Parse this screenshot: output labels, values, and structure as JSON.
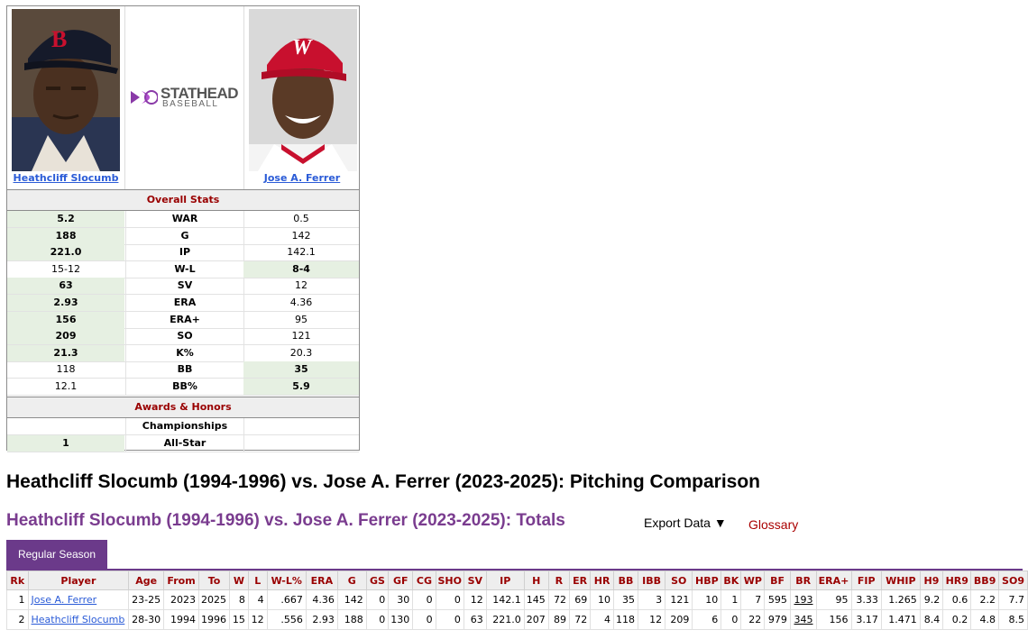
{
  "players": {
    "left": {
      "name": "Heathcliff Slocumb"
    },
    "right": {
      "name": "Jose A. Ferrer"
    }
  },
  "logo": {
    "line1": "STATHEAD",
    "line2": "BASEBALL"
  },
  "overall": {
    "header": "Overall Stats",
    "rows": [
      {
        "label": "WAR",
        "left": "5.2",
        "right": "0.5",
        "winner": "left"
      },
      {
        "label": "G",
        "left": "188",
        "right": "142",
        "winner": "left"
      },
      {
        "label": "IP",
        "left": "221.0",
        "right": "142.1",
        "winner": "left"
      },
      {
        "label": "W-L",
        "left": "15-12",
        "right": "8-4",
        "winner": "right"
      },
      {
        "label": "SV",
        "left": "63",
        "right": "12",
        "winner": "left"
      },
      {
        "label": "ERA",
        "left": "2.93",
        "right": "4.36",
        "winner": "left"
      },
      {
        "label": "ERA+",
        "left": "156",
        "right": "95",
        "winner": "left"
      },
      {
        "label": "SO",
        "left": "209",
        "right": "121",
        "winner": "left"
      },
      {
        "label": "K%",
        "left": "21.3",
        "right": "20.3",
        "winner": "left"
      },
      {
        "label": "BB",
        "left": "118",
        "right": "35",
        "winner": "right"
      },
      {
        "label": "BB%",
        "left": "12.1",
        "right": "5.9",
        "winner": "right"
      }
    ]
  },
  "awards": {
    "header": "Awards & Honors",
    "rows": [
      {
        "label": "Championships",
        "left": "",
        "right": "",
        "winner": "none"
      },
      {
        "label": "All-Star",
        "left": "1",
        "right": "",
        "winner": "left"
      }
    ]
  },
  "heading": "Heathcliff Slocumb (1994-1996) vs. Jose A. Ferrer (2023-2025): Pitching Comparison",
  "subheading": "Heathcliff Slocumb (1994-1996) vs. Jose A. Ferrer (2023-2025): Totals",
  "export_label": "Export Data ▼",
  "glossary_label": "Glossary",
  "tab_label": "Regular Season",
  "table": {
    "columns": [
      "Rk",
      "Player",
      "Age",
      "From",
      "To",
      "W",
      "L",
      "W-L%",
      "ERA",
      "G",
      "GS",
      "GF",
      "CG",
      "SHO",
      "SV",
      "IP",
      "H",
      "R",
      "ER",
      "HR",
      "BB",
      "IBB",
      "SO",
      "HBP",
      "BK",
      "WP",
      "BF",
      "BR",
      "ERA+",
      "FIP",
      "WHIP",
      "H9",
      "HR9",
      "BB9",
      "SO9"
    ],
    "rows": [
      [
        "1",
        "Jose A. Ferrer",
        "23-25",
        "2023",
        "2025",
        "8",
        "4",
        ".667",
        "4.36",
        "142",
        "0",
        "30",
        "0",
        "0",
        "12",
        "142.1",
        "145",
        "72",
        "69",
        "10",
        "35",
        "3",
        "121",
        "10",
        "1",
        "7",
        "595",
        "193",
        "95",
        "3.33",
        "1.265",
        "9.2",
        "0.6",
        "2.2",
        "7.7"
      ],
      [
        "2",
        "Heathcliff Slocumb",
        "28-30",
        "1994",
        "1996",
        "15",
        "12",
        ".556",
        "2.93",
        "188",
        "0",
        "130",
        "0",
        "0",
        "63",
        "221.0",
        "207",
        "89",
        "72",
        "4",
        "118",
        "12",
        "209",
        "6",
        "0",
        "22",
        "979",
        "345",
        "156",
        "3.17",
        "1.471",
        "8.4",
        "0.2",
        "4.8",
        "8.5"
      ]
    ]
  }
}
